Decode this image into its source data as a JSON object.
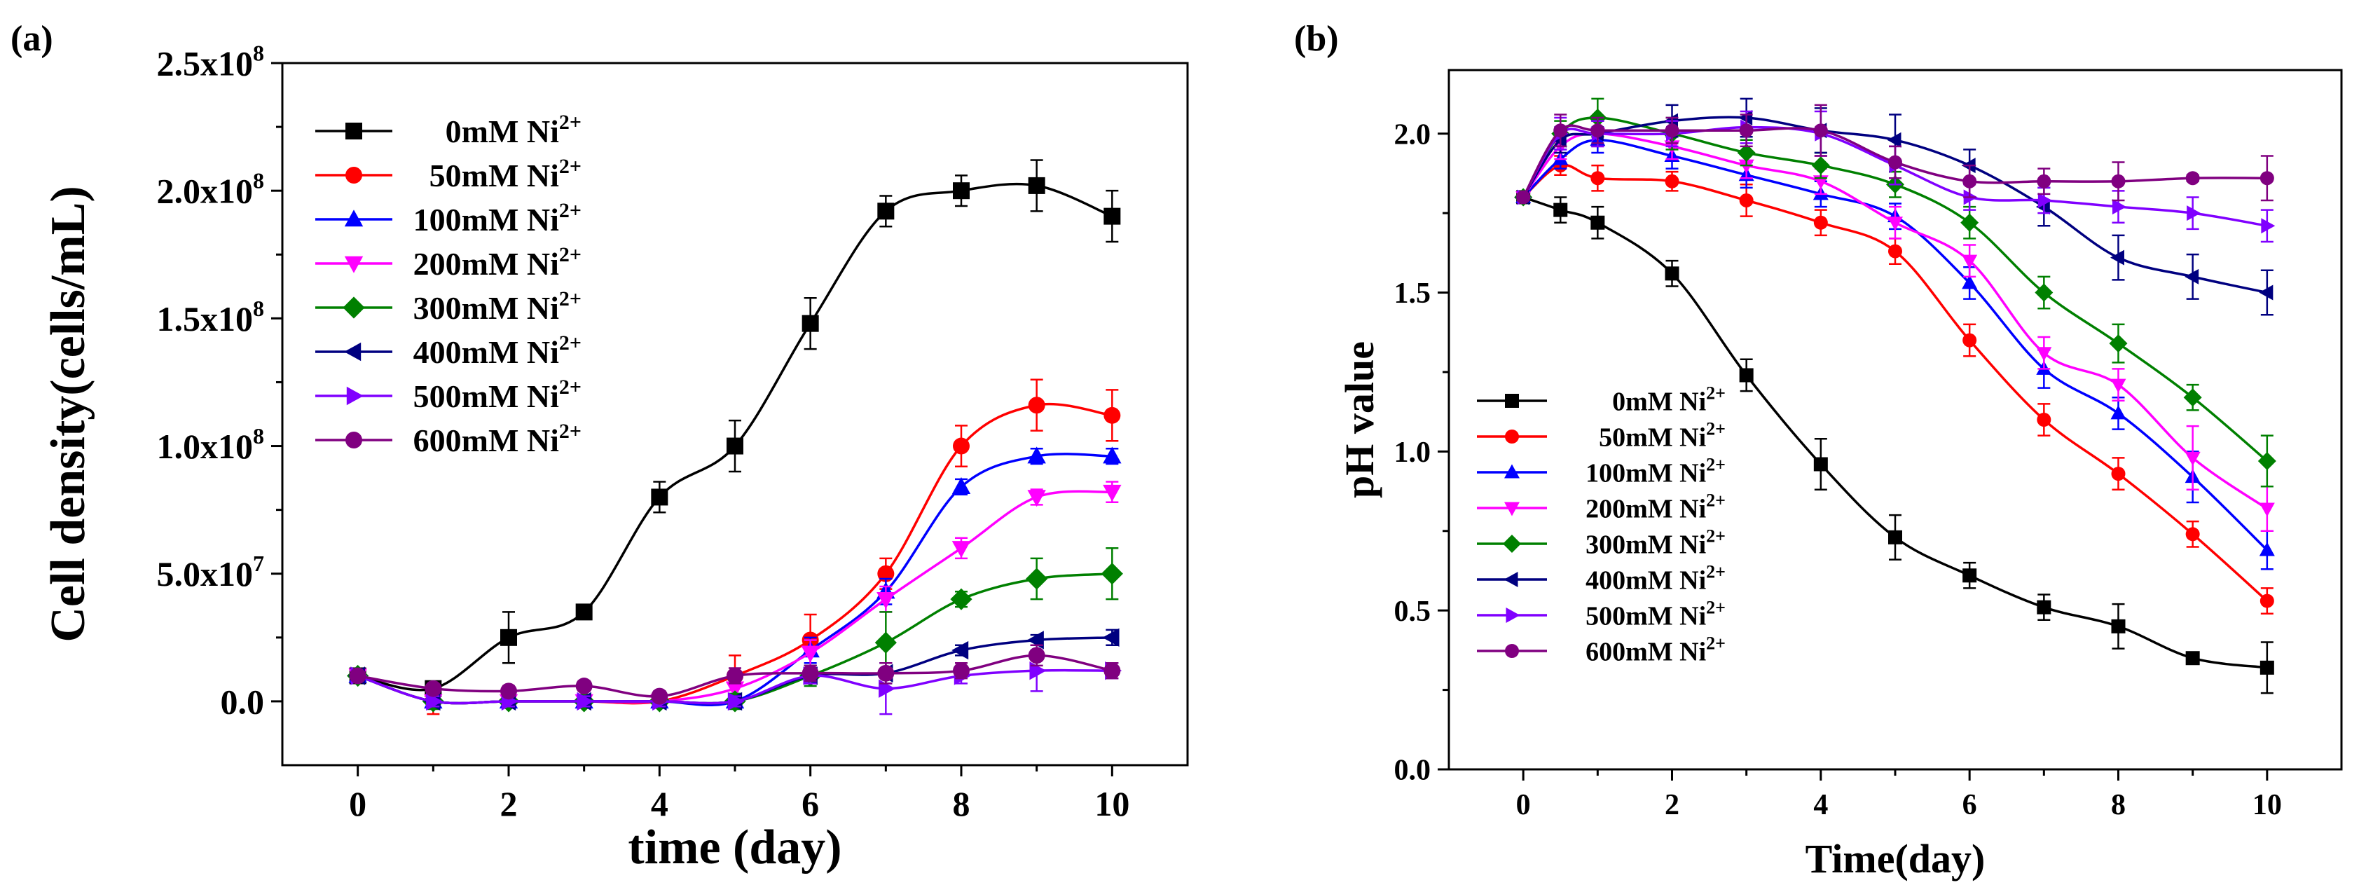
{
  "chart_data": [
    {
      "type": "line",
      "panel_label": "(a)",
      "title": "",
      "xlabel": "time (day)",
      "ylabel": "Cell density(cells/mL)",
      "xlim": [
        -1,
        11
      ],
      "ylim": [
        -25000000.0,
        250000000.0
      ],
      "xticks": [
        0,
        2,
        4,
        6,
        8,
        10
      ],
      "xtick_labels": [
        "0",
        "2",
        "4",
        "6",
        "8",
        "10"
      ],
      "yticks": [
        0,
        50000000.0,
        100000000.0,
        150000000.0,
        200000000.0,
        250000000.0
      ],
      "ytick_labels": [
        {
          "mant": "0.0",
          "exp": ""
        },
        {
          "mant": "5.0x10",
          "exp": "7"
        },
        {
          "mant": "1.0x10",
          "exp": "8"
        },
        {
          "mant": "1.5x10",
          "exp": "8"
        },
        {
          "mant": "2.0x10",
          "exp": "8"
        },
        {
          "mant": "2.5x10",
          "exp": "8"
        }
      ],
      "legend_position": "top-left",
      "x": [
        0,
        1,
        2,
        3,
        4,
        5,
        6,
        7,
        8,
        9,
        10
      ],
      "series": [
        {
          "name": "0mM Ni",
          "sup": "2+",
          "color": "#000000",
          "marker": "square",
          "values": [
            10000000.0,
            5000000.0,
            25000000.0,
            35000000.0,
            80000000.0,
            100000000.0,
            148000000.0,
            192000000.0,
            200000000.0,
            202000000.0,
            190000000.0
          ],
          "errors": [
            2000000.0,
            2000000.0,
            10000000.0,
            2000000.0,
            6000000.0,
            10000000.0,
            10000000.0,
            6000000.0,
            6000000.0,
            10000000.0,
            10000000.0
          ]
        },
        {
          "name": "50mM Ni",
          "sup": "2+",
          "color": "#ff0000",
          "marker": "circle",
          "values": [
            10000000.0,
            0,
            0,
            0,
            0,
            10000000.0,
            24000000.0,
            50000000.0,
            100000000.0,
            116000000.0,
            112000000.0
          ],
          "errors": [
            1000000.0,
            5000000.0,
            2000000.0,
            2000000.0,
            2000000.0,
            8000000.0,
            10000000.0,
            6000000.0,
            8000000.0,
            10000000.0,
            10000000.0
          ]
        },
        {
          "name": "100mM Ni",
          "sup": "2+",
          "color": "#0000ff",
          "marker": "triangle-up",
          "values": [
            10000000.0,
            0,
            0,
            0,
            0,
            0,
            20000000.0,
            43000000.0,
            84000000.0,
            96000000.0,
            96000000.0
          ],
          "errors": [
            1000000.0,
            3000000.0,
            2000000.0,
            2000000.0,
            2000000.0,
            3000000.0,
            5000000.0,
            5000000.0,
            3000000.0,
            3000000.0,
            3000000.0
          ]
        },
        {
          "name": "200mM Ni",
          "sup": "2+",
          "color": "#ff00ff",
          "marker": "triangle-down",
          "values": [
            10000000.0,
            0,
            0,
            0,
            0,
            5000000.0,
            19000000.0,
            40000000.0,
            60000000.0,
            80000000.0,
            82000000.0
          ],
          "errors": [
            1000000.0,
            3000000.0,
            2000000.0,
            2000000.0,
            2000000.0,
            3000000.0,
            5000000.0,
            5000000.0,
            4000000.0,
            3000000.0,
            4000000.0
          ]
        },
        {
          "name": "300mM Ni",
          "sup": "2+",
          "color": "#008000",
          "marker": "diamond",
          "values": [
            10000000.0,
            0,
            0,
            0,
            0,
            0,
            10000000.0,
            23000000.0,
            40000000.0,
            48000000.0,
            50000000.0
          ],
          "errors": [
            1000000.0,
            3000000.0,
            2000000.0,
            2000000.0,
            2000000.0,
            3000000.0,
            4000000.0,
            12000000.0,
            3000000.0,
            8000000.0,
            10000000.0
          ]
        },
        {
          "name": "400mM Ni",
          "sup": "2+",
          "color": "#000080",
          "marker": "triangle-left",
          "values": [
            10000000.0,
            0,
            0,
            0,
            0,
            0,
            10000000.0,
            11000000.0,
            20000000.0,
            24000000.0,
            25000000.0
          ],
          "errors": [
            1000000.0,
            2000000.0,
            2000000.0,
            2000000.0,
            2000000.0,
            2000000.0,
            3000000.0,
            4000000.0,
            2000000.0,
            2000000.0,
            3000000.0
          ]
        },
        {
          "name": "500mM Ni",
          "sup": "2+",
          "color": "#8000ff",
          "marker": "triangle-right",
          "values": [
            10000000.0,
            0,
            0,
            0,
            0,
            0,
            10000000.0,
            5000000.0,
            10000000.0,
            12000000.0,
            12000000.0
          ],
          "errors": [
            1000000.0,
            2000000.0,
            2000000.0,
            2000000.0,
            2000000.0,
            2000000.0,
            3000000.0,
            10000000.0,
            3000000.0,
            8000000.0,
            3000000.0
          ]
        },
        {
          "name": "600mM Ni",
          "sup": "2+",
          "color": "#800080",
          "marker": "circle",
          "values": [
            10000000.0,
            5000000.0,
            4000000.0,
            6000000.0,
            2000000.0,
            10000000.0,
            11000000.0,
            11000000.0,
            12000000.0,
            18000000.0,
            12000000.0
          ],
          "errors": [
            1000000.0,
            2000000.0,
            2000000.0,
            2000000.0,
            2000000.0,
            3000000.0,
            3000000.0,
            4000000.0,
            3000000.0,
            4000000.0,
            3000000.0
          ]
        }
      ]
    },
    {
      "type": "line",
      "panel_label": "(b)",
      "title": "",
      "xlabel": "Time(day)",
      "ylabel": "pH value",
      "xlim": [
        -1,
        11
      ],
      "ylim": [
        0,
        2.2
      ],
      "xticks": [
        0,
        2,
        4,
        6,
        8,
        10
      ],
      "xtick_labels": [
        "0",
        "2",
        "4",
        "6",
        "8",
        "10"
      ],
      "yticks": [
        0,
        0.5,
        1.0,
        1.5,
        2.0
      ],
      "ytick_labels": [
        {
          "mant": "0.0",
          "exp": ""
        },
        {
          "mant": "0.5",
          "exp": ""
        },
        {
          "mant": "1.0",
          "exp": ""
        },
        {
          "mant": "1.5",
          "exp": ""
        },
        {
          "mant": "2.0",
          "exp": ""
        }
      ],
      "legend_position": "bottom-left",
      "x": [
        0,
        0.5,
        1,
        2,
        3,
        4,
        5,
        6,
        7,
        8,
        9,
        10
      ],
      "series": [
        {
          "name": "0mM Ni",
          "sup": "2+",
          "color": "#000000",
          "marker": "square",
          "values": [
            1.8,
            1.76,
            1.72,
            1.56,
            1.24,
            0.96,
            0.73,
            0.61,
            0.51,
            0.45,
            0.35,
            0.32
          ],
          "errors": [
            0.01,
            0.04,
            0.05,
            0.04,
            0.05,
            0.08,
            0.07,
            0.04,
            0.04,
            0.07,
            0.01,
            0.08
          ]
        },
        {
          "name": "50mM Ni",
          "sup": "2+",
          "color": "#ff0000",
          "marker": "circle",
          "values": [
            1.8,
            1.9,
            1.86,
            1.85,
            1.79,
            1.72,
            1.63,
            1.35,
            1.1,
            0.93,
            0.74,
            0.53
          ],
          "errors": [
            0.01,
            0.03,
            0.04,
            0.03,
            0.05,
            0.04,
            0.04,
            0.05,
            0.05,
            0.05,
            0.04,
            0.04
          ]
        },
        {
          "name": "100mM Ni",
          "sup": "2+",
          "color": "#0000ff",
          "marker": "triangle-up",
          "values": [
            1.8,
            1.92,
            1.98,
            1.93,
            1.87,
            1.81,
            1.74,
            1.53,
            1.26,
            1.12,
            0.92,
            0.69
          ],
          "errors": [
            0.01,
            0.03,
            0.04,
            0.04,
            0.04,
            0.04,
            0.04,
            0.05,
            0.06,
            0.05,
            0.08,
            0.06
          ]
        },
        {
          "name": "200mM Ni",
          "sup": "2+",
          "color": "#ff00ff",
          "marker": "triangle-down",
          "values": [
            1.8,
            1.96,
            2.0,
            1.96,
            1.9,
            1.85,
            1.72,
            1.6,
            1.31,
            1.21,
            0.98,
            0.82
          ],
          "errors": [
            0.01,
            0.04,
            0.04,
            0.04,
            0.04,
            0.04,
            0.05,
            0.05,
            0.05,
            0.05,
            0.1,
            0.07
          ]
        },
        {
          "name": "300mM Ni",
          "sup": "2+",
          "color": "#008000",
          "marker": "diamond",
          "values": [
            1.8,
            2.0,
            2.05,
            2.0,
            1.94,
            1.9,
            1.84,
            1.72,
            1.5,
            1.34,
            1.17,
            0.97
          ],
          "errors": [
            0.01,
            0.04,
            0.06,
            0.05,
            0.04,
            0.04,
            0.04,
            0.05,
            0.05,
            0.06,
            0.04,
            0.08
          ]
        },
        {
          "name": "400mM Ni",
          "sup": "2+",
          "color": "#000080",
          "marker": "triangle-left",
          "values": [
            1.8,
            1.98,
            2.0,
            2.04,
            2.05,
            2.01,
            1.98,
            1.9,
            1.77,
            1.61,
            1.55,
            1.5
          ],
          "errors": [
            0.01,
            0.04,
            0.04,
            0.05,
            0.06,
            0.07,
            0.08,
            0.05,
            0.06,
            0.07,
            0.07,
            0.07
          ]
        },
        {
          "name": "500mM Ni",
          "sup": "2+",
          "color": "#8000ff",
          "marker": "triangle-right",
          "values": [
            1.8,
            2.0,
            2.0,
            2.0,
            2.02,
            2.0,
            1.9,
            1.8,
            1.79,
            1.77,
            1.75,
            1.71
          ],
          "errors": [
            0.01,
            0.05,
            0.04,
            0.04,
            0.05,
            0.07,
            0.06,
            0.04,
            0.04,
            0.05,
            0.05,
            0.05
          ]
        },
        {
          "name": "600mM Ni",
          "sup": "2+",
          "color": "#800080",
          "marker": "circle",
          "values": [
            1.8,
            2.01,
            2.01,
            2.01,
            2.01,
            2.01,
            1.91,
            1.85,
            1.85,
            1.85,
            1.86,
            1.86
          ],
          "errors": [
            0.01,
            0.05,
            0.04,
            0.04,
            0.05,
            0.08,
            0.05,
            0.05,
            0.04,
            0.06,
            0.01,
            0.07
          ]
        }
      ]
    }
  ]
}
